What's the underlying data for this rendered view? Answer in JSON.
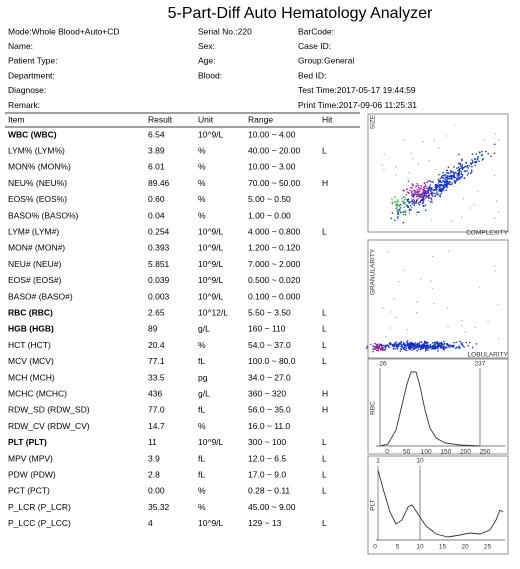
{
  "header": {
    "title": "5-Part-Diff Auto Hematology Analyzer",
    "info_left": [
      "Mode:Whole Blood+Auto+CD",
      "Name:",
      "Patient Type:",
      "Department:",
      "Diagnose:",
      "Remark:"
    ],
    "info_mid": [
      "Serial No.:220",
      "Sex:",
      "Age:",
      "Blood:"
    ],
    "info_right": [
      "BarCode:",
      "Case ID:",
      "Group:General",
      "Bed ID:",
      "Test Time:2017-05-17  19:44:59",
      "Print Time:2017-09-06  11:25:31"
    ]
  },
  "table": {
    "columns": [
      "Item",
      "Result",
      "Unit",
      "Range",
      "Hit"
    ],
    "rows": [
      {
        "item": "WBC (WBC)",
        "result": "6.54",
        "unit": "10^9/L",
        "range": "10.00 ~ 4.00",
        "color": "#000000",
        "bold": true
      },
      {
        "item": "LYM% (LYM%)",
        "result": "3.89",
        "unit": "%",
        "range": "40.00 ~ 20.00",
        "hit": "L",
        "color": "#1f4e9c"
      },
      {
        "item": "MON% (MON%)",
        "result": "6.01",
        "unit": "%",
        "range": "10.00 ~ 3.00",
        "color": "#000000"
      },
      {
        "item": "NEU% (NEU%)",
        "result": "89.46",
        "unit": "%",
        "range": "70.00 ~ 50.00",
        "hit": "H",
        "color": "#d01010"
      },
      {
        "item": "EOS% (EOS%)",
        "result": "0.60",
        "unit": "%",
        "range": "5.00 ~ 0.50",
        "color": "#000000"
      },
      {
        "item": "BASO% (BASO%)",
        "result": "0.04",
        "unit": "%",
        "range": "1.00 ~ 0.00",
        "color": "#000000"
      },
      {
        "item": "LYM# (LYM#)",
        "result": "0.254",
        "unit": "10^9/L",
        "range": "4.000 ~ 0.800",
        "hit": "L",
        "color": "#1f4e9c"
      },
      {
        "item": "MON# (MON#)",
        "result": "0.393",
        "unit": "10^9/L",
        "range": "1.200 ~ 0.120",
        "color": "#000000"
      },
      {
        "item": "NEU# (NEU#)",
        "result": "5.851",
        "unit": "10^9/L",
        "range": "7.000 ~ 2.000",
        "color": "#000000"
      },
      {
        "item": "EOS# (EOS#)",
        "result": "0.039",
        "unit": "10^9/L",
        "range": "0.500 ~ 0.020",
        "color": "#000000"
      },
      {
        "item": "BASO# (BASO#)",
        "result": "0.003",
        "unit": "10^9/L",
        "range": "0.100 ~ 0.000",
        "color": "#000000"
      },
      {
        "item": "RBC (RBC)",
        "result": "2.65",
        "unit": "10^12/L",
        "range": "5.50 ~ 3.50",
        "hit": "L",
        "color": "#1f4e9c",
        "bold": true
      },
      {
        "item": "HGB (HGB)",
        "result": "89",
        "unit": "g/L",
        "range": "160 ~ 110",
        "hit": "L",
        "color": "#1f4e9c",
        "bold": true
      },
      {
        "item": "HCT (HCT)",
        "result": "20.4",
        "unit": "%",
        "range": "54.0 ~ 37.0",
        "hit": "L",
        "color": "#1f4e9c"
      },
      {
        "item": "MCV (MCV)",
        "result": "77.1",
        "unit": "fL",
        "range": "100.0 ~ 80.0",
        "hit": "L",
        "color": "#1f4e9c"
      },
      {
        "item": "MCH (MCH)",
        "result": "33.5",
        "unit": "pg",
        "range": "34.0 ~ 27.0",
        "color": "#000000"
      },
      {
        "item": "MCHC (MCHC)",
        "result": "436",
        "unit": "g/L",
        "range": "360 ~ 320",
        "hit": "H",
        "color": "#d01010"
      },
      {
        "item": "RDW_SD (RDW_SD)",
        "result": "77.0",
        "unit": "fL",
        "range": "56.0 ~ 35.0",
        "hit": "H",
        "color": "#d01010"
      },
      {
        "item": "RDW_CV (RDW_CV)",
        "result": "14.7",
        "unit": "%",
        "range": "16.0 ~ 11.0",
        "color": "#000000"
      },
      {
        "item": "PLT (PLT)",
        "result": "11",
        "unit": "10^9/L",
        "range": "300 ~ 100",
        "hit": "L",
        "color": "#1f4e9c",
        "bold": true
      },
      {
        "item": "MPV (MPV)",
        "result": "3.9",
        "unit": "fL",
        "range": "12.0 ~ 6.5",
        "hit": "L",
        "color": "#1f4e9c"
      },
      {
        "item": "PDW (PDW)",
        "result": "2.8",
        "unit": "fL",
        "range": "17.0 ~ 9.0",
        "hit": "L",
        "color": "#1f4e9c"
      },
      {
        "item": "PCT (PCT)",
        "result": "0.00",
        "unit": "%",
        "range": "0.28 ~ 0.11",
        "hit": "L",
        "color": "#1f4e9c"
      },
      {
        "item": "P_LCR (P_LCR)",
        "result": "35.32",
        "unit": "%",
        "range": "45.00 ~ 9.00",
        "color": "#000000"
      },
      {
        "item": "P_LCC (P_LCC)",
        "result": "4",
        "unit": "10^9/L",
        "range": "129 ~ 13",
        "hit": "L",
        "color": "#1f4e9c"
      }
    ]
  },
  "plots": {
    "scatter1": {
      "y_label": "SIZE",
      "x_label": "COMPLEXITY"
    },
    "scatter2": {
      "y_label": "GRANULARITY",
      "x_label": "LOBULARITY"
    },
    "rbc": {
      "label": "RBC",
      "markers": [
        "26",
        "237"
      ],
      "ticks": [
        "0",
        "50",
        "100",
        "150",
        "200",
        "250"
      ]
    },
    "plt": {
      "label": "PLT",
      "markers": [
        "1",
        "10"
      ],
      "ticks": [
        "0",
        "5",
        "10",
        "15",
        "20",
        "25"
      ]
    }
  }
}
